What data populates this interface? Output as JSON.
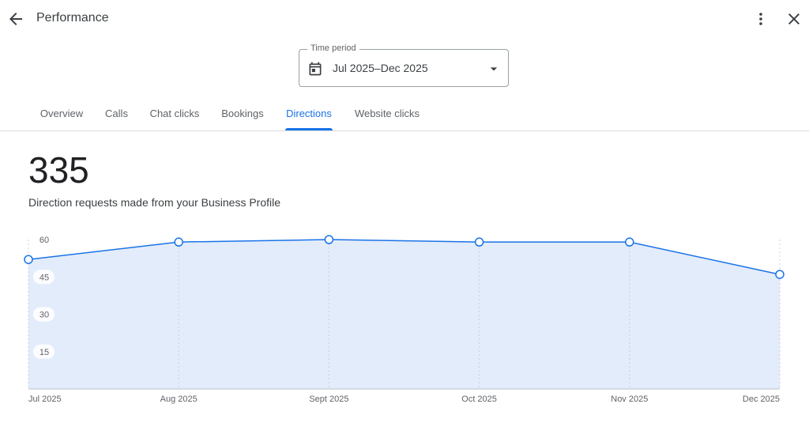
{
  "header": {
    "title": "Performance"
  },
  "icons": {
    "back": "arrow-back-icon",
    "menu": "more-vert-icon",
    "close": "close-icon",
    "calendar": "calendar-icon",
    "caret": "caret-down-icon"
  },
  "time_period": {
    "label": "Time period",
    "value": "Jul 2025–Dec 2025"
  },
  "tabs": [
    {
      "label": "Overview",
      "active": false
    },
    {
      "label": "Calls",
      "active": false
    },
    {
      "label": "Chat clicks",
      "active": false
    },
    {
      "label": "Bookings",
      "active": false
    },
    {
      "label": "Directions",
      "active": true
    },
    {
      "label": "Website clicks",
      "active": false
    }
  ],
  "metric": {
    "value": "335",
    "description": "Direction requests made from your Business Profile"
  },
  "colors": {
    "accent": "#1a73e8",
    "area_fill": "#e3ecfb",
    "line": "#1a73e8"
  },
  "chart_data": {
    "type": "area",
    "categories": [
      "Jul 2025",
      "Aug 2025",
      "Sept 2025",
      "Oct 2025",
      "Nov 2025",
      "Dec 2025"
    ],
    "series": [
      {
        "values": [
          52,
          59,
          60,
          59,
          59,
          46
        ]
      }
    ],
    "yticks": [
      15,
      30,
      45,
      60
    ],
    "ylim": [
      0,
      60
    ],
    "grid": true
  }
}
